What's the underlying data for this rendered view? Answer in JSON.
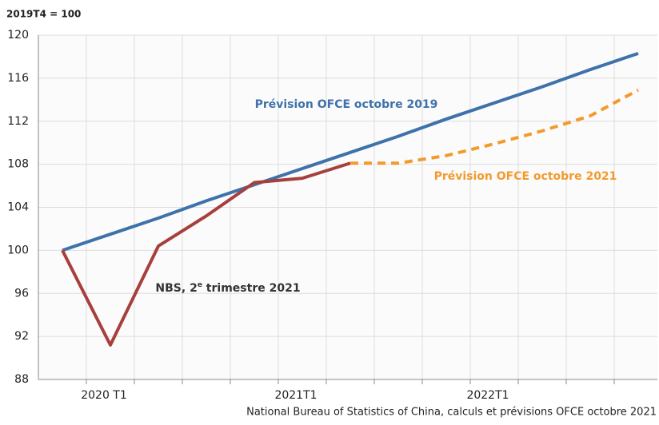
{
  "chart_data": {
    "type": "line",
    "y_label": "2019T4 = 100",
    "source": "National Bureau of Statistics of China, calculs et prévisions OFCE octobre 2021",
    "categories": [
      null,
      "2020 T1",
      null,
      null,
      null,
      "2021T1",
      null,
      null,
      null,
      "2022T1",
      null,
      null,
      null
    ],
    "ylim": [
      88,
      120
    ],
    "yticks": [
      88,
      92,
      96,
      100,
      104,
      108,
      112,
      116,
      120
    ],
    "grid": true,
    "series": [
      {
        "name": "Prévision OFCE octobre 2019",
        "color": "#3e72aa",
        "dash": false,
        "values": [
          100,
          101.5,
          103.0,
          104.6,
          106.1,
          107.6,
          109.1,
          110.6,
          112.2,
          113.7,
          115.2,
          116.8,
          118.3
        ]
      },
      {
        "name": "NBS, 2e trimestre 2021",
        "color": "#a7403c",
        "dash": false,
        "values": [
          100,
          91.2,
          100.4,
          103.2,
          106.3,
          106.7,
          108.1,
          null,
          null,
          null,
          null,
          null,
          null
        ]
      },
      {
        "name": "Prévision OFCE octobre 2021",
        "color": "#f39a2d",
        "dash": true,
        "values": [
          null,
          null,
          null,
          null,
          null,
          null,
          108.1,
          108.1,
          108.8,
          109.9,
          111.1,
          112.5,
          114.9
        ]
      }
    ],
    "annotations": [
      {
        "text": "Prévision OFCE octobre 2019"
      },
      {
        "text": "Prévision OFCE octobre 2021"
      },
      {
        "parts": [
          "NBS, 2",
          "e",
          " trimestre 2021"
        ]
      }
    ]
  }
}
